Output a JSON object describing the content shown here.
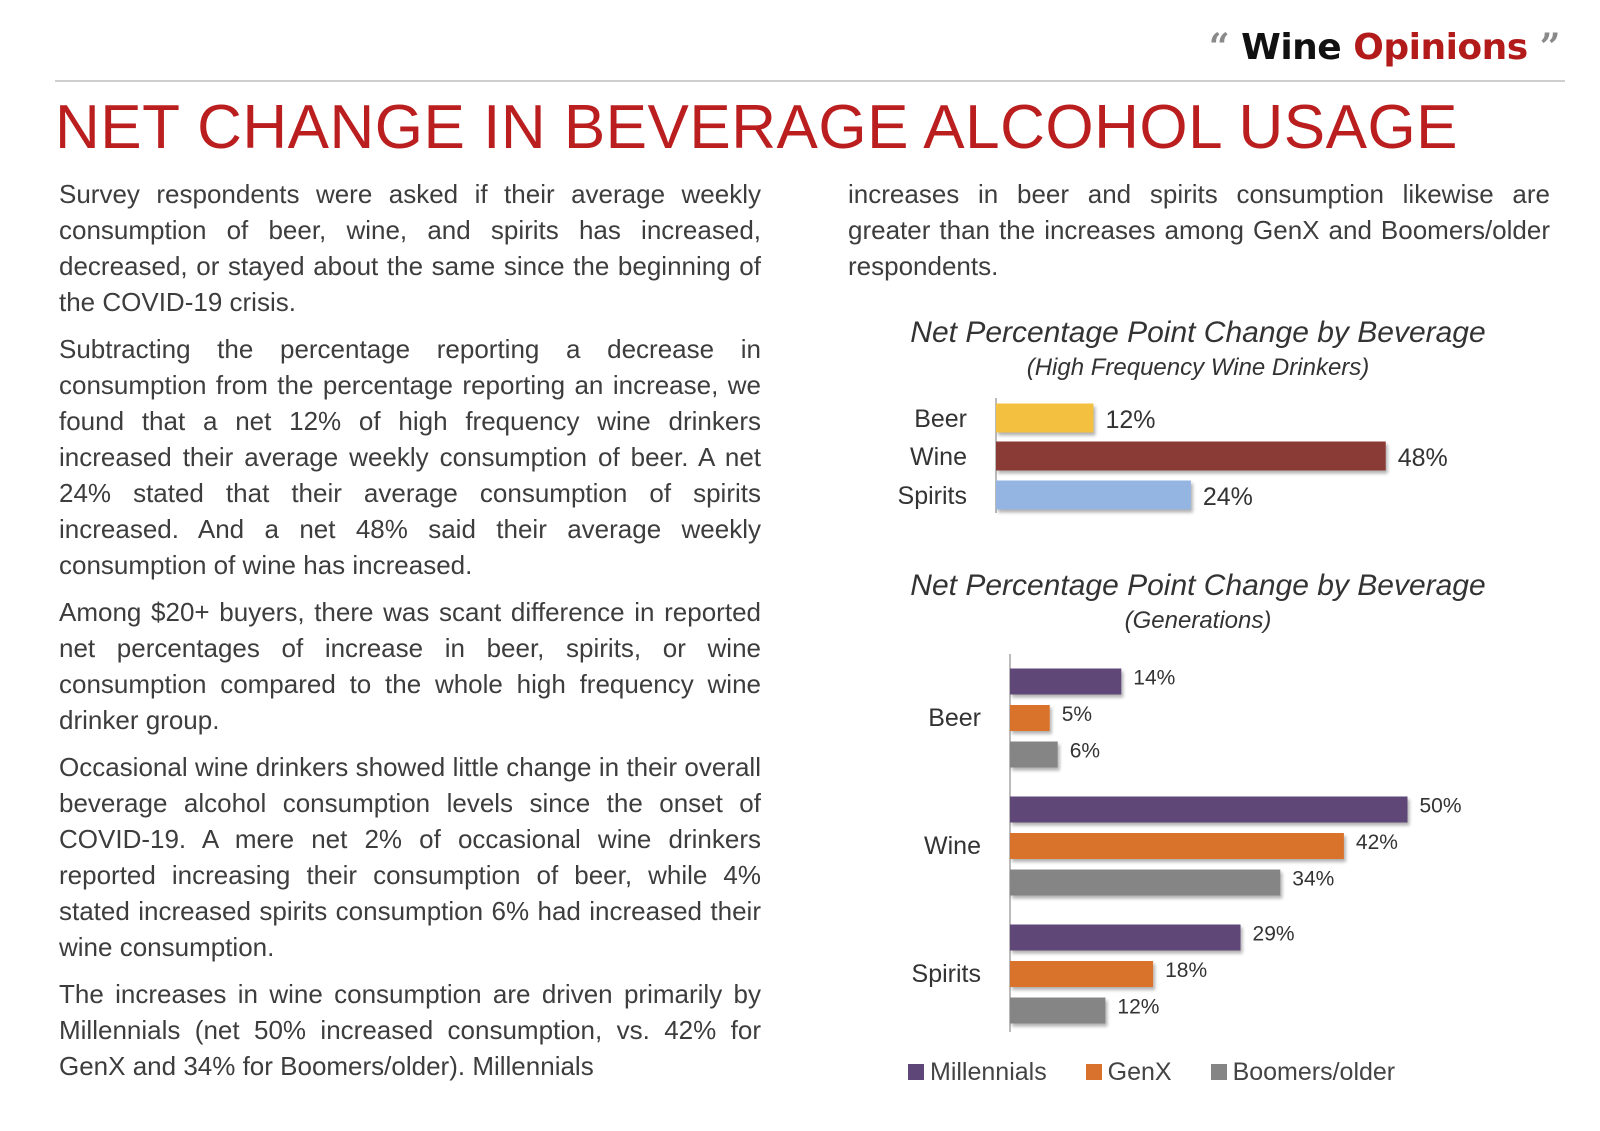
{
  "header": {
    "logo_open_quote": "“",
    "logo_word1": "Wine",
    "logo_word2": "Opinions",
    "logo_close_quote": "”",
    "title": "NET CHANGE IN BEVERAGE ALCOHOL USAGE"
  },
  "body": {
    "paragraphs": [
      "Survey respondents were asked if their average weekly consumption of beer, wine, and spirits has increased, decreased, or stayed about the same since the beginning of the COVID-19 crisis.",
      "Subtracting the percentage reporting a decrease in consumption from the percentage reporting an increase, we found that a net 12% of high frequency wine drinkers increased their average weekly consumption of beer.  A net 24% stated that their average consumption of spirits increased.  And a net 48% said their average weekly consumption of wine has increased.",
      "Among $20+ buyers, there was scant difference in reported net percentages of increase in beer, spirits, or wine consumption compared to the whole high frequency wine drinker group.",
      "Occasional wine drinkers showed little change in their overall beverage alcohol consumption levels since the onset of COVID-19.  A mere net 2% of occasional wine drinkers reported increasing their consumption of beer, while 4% stated increased spirits consumption 6% had increased their wine consumption.",
      "The increases in wine consumption are driven primarily by Millennials (net 50% increased consumption, vs. 42% for GenX and 34% for Boomers/older).  Millennials",
      "increases in beer and spirits consumption likewise are greater than the increases among GenX and Boomers/older respondents."
    ]
  },
  "chart_data": [
    {
      "type": "bar",
      "orientation": "horizontal",
      "title": "Net Percentage Point Change by Beverage",
      "subtitle": "(High Frequency Wine Drinkers)",
      "categories": [
        "Beer",
        "Wine",
        "Spirits"
      ],
      "values": [
        12,
        48,
        24
      ],
      "value_labels": [
        "12%",
        "48%",
        "24%"
      ],
      "colors": [
        "#f3c041",
        "#8b3a36",
        "#94b4e2"
      ],
      "xlim": [
        0,
        60
      ],
      "grid": false
    },
    {
      "type": "bar",
      "orientation": "horizontal",
      "title": "Net Percentage Point Change by Beverage",
      "subtitle": "(Generations)",
      "categories": [
        "Beer",
        "Wine",
        "Spirits"
      ],
      "series": [
        {
          "name": "Millennials",
          "color": "#5e4778",
          "values": [
            14,
            50,
            29
          ],
          "labels": [
            "14%",
            "50%",
            "29%"
          ]
        },
        {
          "name": "GenX",
          "color": "#d9722c",
          "values": [
            5,
            42,
            18
          ],
          "labels": [
            "5%",
            "42%",
            "18%"
          ]
        },
        {
          "name": "Boomers/older",
          "color": "#858585",
          "values": [
            6,
            34,
            12
          ],
          "labels": [
            "6%",
            "34%",
            "12%"
          ]
        }
      ],
      "xlim": [
        0,
        60
      ],
      "legend": "bottom",
      "grid": false
    }
  ]
}
